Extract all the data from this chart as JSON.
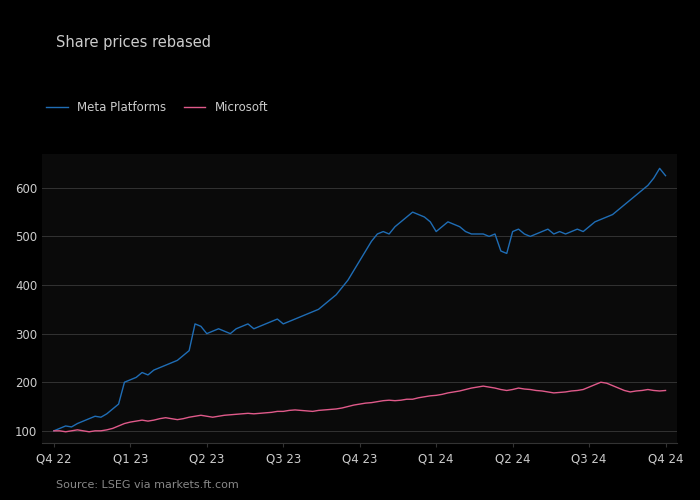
{
  "title": "Share prices rebased",
  "meta_color": "#1f6db5",
  "msft_color": "#e05a8a",
  "meta_label": "Meta Platforms",
  "msft_label": "Microsoft",
  "source": "Source: LSEG via markets.ft.com",
  "ylim": [
    75,
    670
  ],
  "yticks": [
    100,
    200,
    300,
    400,
    500,
    600
  ],
  "xtick_labels": [
    "Q4 22",
    "Q1 23",
    "Q2 23",
    "Q3 23",
    "Q4 23",
    "Q1 24",
    "Q2 24",
    "Q3 24",
    "Q4 24"
  ],
  "xtick_positions": [
    0,
    13,
    26,
    39,
    52,
    65,
    78,
    91,
    104
  ],
  "background_color": "#0a0a0a",
  "grid_color": "#333333",
  "text_color": "#cccccc",
  "meta_data": [
    100,
    105,
    110,
    108,
    115,
    120,
    125,
    130,
    128,
    135,
    145,
    155,
    200,
    205,
    210,
    220,
    215,
    225,
    230,
    235,
    240,
    245,
    255,
    265,
    320,
    315,
    300,
    305,
    310,
    305,
    300,
    310,
    315,
    320,
    310,
    315,
    320,
    325,
    330,
    320,
    325,
    330,
    335,
    340,
    345,
    350,
    360,
    370,
    380,
    395,
    410,
    430,
    450,
    470,
    490,
    505,
    510,
    505,
    520,
    530,
    540,
    550,
    545,
    540,
    530,
    510,
    520,
    530,
    525,
    520,
    510,
    505,
    505,
    505,
    500,
    505,
    470,
    465,
    510,
    515,
    505,
    500,
    505,
    510,
    515,
    505,
    510,
    505,
    510,
    515,
    510,
    520,
    530,
    535,
    540,
    545,
    555,
    565,
    575,
    585,
    595,
    605,
    620,
    640,
    625
  ],
  "msft_data": [
    100,
    100,
    98,
    100,
    102,
    100,
    98,
    100,
    100,
    102,
    105,
    110,
    115,
    118,
    120,
    122,
    120,
    122,
    125,
    127,
    125,
    123,
    125,
    128,
    130,
    132,
    130,
    128,
    130,
    132,
    133,
    134,
    135,
    136,
    135,
    136,
    137,
    138,
    140,
    140,
    142,
    143,
    142,
    141,
    140,
    142,
    143,
    144,
    145,
    147,
    150,
    153,
    155,
    157,
    158,
    160,
    162,
    163,
    162,
    163,
    165,
    165,
    168,
    170,
    172,
    173,
    175,
    178,
    180,
    182,
    185,
    188,
    190,
    192,
    190,
    188,
    185,
    183,
    185,
    188,
    186,
    185,
    183,
    182,
    180,
    178,
    179,
    180,
    182,
    183,
    185,
    190,
    195,
    200,
    198,
    193,
    188,
    183,
    180,
    182,
    183,
    185,
    183,
    182,
    183
  ]
}
